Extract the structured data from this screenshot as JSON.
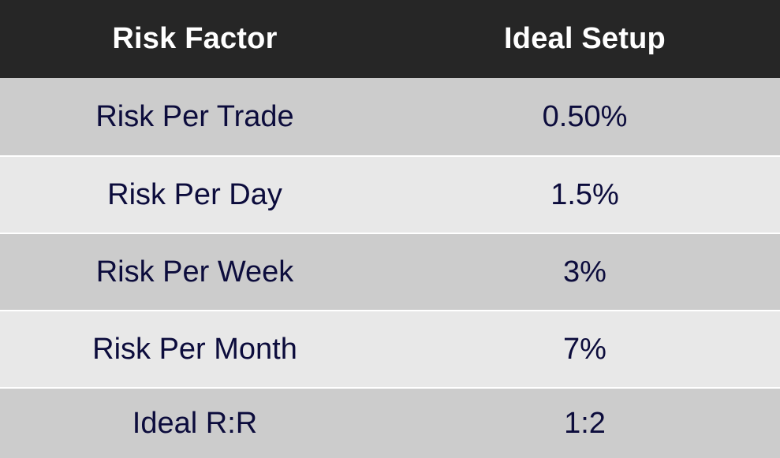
{
  "table": {
    "headers": [
      "Risk Factor",
      "Ideal Setup"
    ],
    "rows": [
      {
        "factor": "Risk Per Trade",
        "setup": "0.50%"
      },
      {
        "factor": "Risk Per Day",
        "setup": "1.5%"
      },
      {
        "factor": "Risk Per Week",
        "setup": "3%"
      },
      {
        "factor": "Risk Per Month",
        "setup": "7%"
      },
      {
        "factor": "Ideal R:R",
        "setup": "1:2"
      }
    ]
  },
  "colors": {
    "header_bg": "#262626",
    "header_text": "#ffffff",
    "row_dark_bg": "#cccccc",
    "row_light_bg": "#e8e8e8",
    "body_text": "#0c0c3c"
  }
}
